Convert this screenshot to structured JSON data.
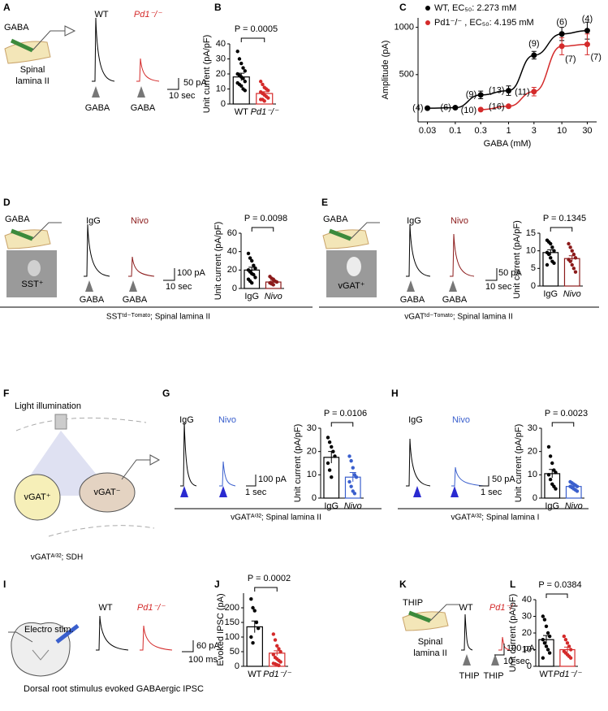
{
  "figure": {
    "labels": [
      "A",
      "B",
      "C",
      "D",
      "E",
      "F",
      "G",
      "H",
      "I",
      "J",
      "K",
      "L"
    ],
    "A": {
      "pipette": "GABA",
      "region": [
        "Spinal",
        "lamina II"
      ],
      "traces": [
        "WT",
        "Pd1⁻/⁻"
      ],
      "scale": [
        "50 pA",
        "10 sec"
      ],
      "stim": [
        "GABA",
        "GABA"
      ]
    },
    "D": {
      "pipette": "GABA",
      "cell": "SST⁺",
      "traces": [
        "IgG",
        "Nivo"
      ],
      "scale": [
        "100 pA",
        "10 sec"
      ],
      "stim": [
        "GABA",
        "GABA"
      ],
      "footer": "SSTᵗᵈ⁻ᵀᵒᵐᵃᵗᵒ; Spinal lamina II"
    },
    "E": {
      "pipette": "GABA",
      "cell": "vGAT⁺",
      "traces": [
        "IgG",
        "Nivo"
      ],
      "scale": [
        "50 pA",
        "10 sec"
      ],
      "stim": [
        "GABA",
        "GABA"
      ],
      "footer": "vGATᵗᵈ⁻ᵀᵒᵐᵃᵗᵒ; Spinal lamina II"
    },
    "F": {
      "lamp": "Light illumination",
      "cells": [
        "vGAT⁺",
        "vGAT⁻"
      ],
      "footer": "vGATᴬⁱ³²; SDH"
    },
    "G": {
      "traces": [
        "IgG",
        "Nivo"
      ],
      "scale": [
        "100 pA",
        "1 sec"
      ],
      "footer": "vGATᴬⁱ³²; Spinal lamina II"
    },
    "H": {
      "traces": [
        "IgG",
        "Nivo"
      ],
      "scale": [
        "50 pA",
        "1 sec"
      ],
      "footer": "vGATᴬⁱ³²; Spinal lamina I"
    },
    "I": {
      "stim_label": "Electro stim.",
      "traces": [
        "WT",
        "Pd1⁻/⁻"
      ],
      "scale": [
        "60 pA",
        "100 ms"
      ],
      "footer": "Dorsal root stimulus evoked GABAergic IPSC"
    },
    "K": {
      "pipette": "THIP",
      "region": [
        "Spinal",
        "lamina II"
      ],
      "traces": [
        "WT",
        "Pd1⁻/⁻"
      ],
      "scale": [
        "100 pA",
        "10 sec"
      ],
      "stim": [
        "THIP",
        "THIP"
      ]
    }
  },
  "chart_data": [
    {
      "type": "bar",
      "title": "P = 0.0005",
      "ylabel": "Unit current (pA/pF)",
      "categories": [
        "WT",
        "Pd1⁻/⁻"
      ],
      "values": [
        18,
        7
      ],
      "errors": [
        2.5,
        1.2
      ],
      "points": [
        [
          35,
          30,
          27,
          24,
          22,
          20,
          19,
          18,
          17,
          15,
          14,
          13,
          12,
          10,
          9
        ],
        [
          15,
          13,
          11,
          10,
          9,
          8,
          7,
          6,
          5,
          4,
          3,
          3,
          2
        ]
      ],
      "colors": [
        "#000000",
        "#d42a2a"
      ],
      "ylim": [
        0,
        40
      ],
      "yticks": [
        0,
        10,
        20,
        30,
        40
      ]
    },
    {
      "type": "line",
      "ylabel": "Amplitude (pA)",
      "xlabel": "GABA (mM)",
      "log_x": true,
      "x": [
        0.03,
        0.1,
        0.3,
        1,
        3,
        10,
        30
      ],
      "series": [
        {
          "name": "WT, EC₅₀: 2.273 mM",
          "color": "#000000",
          "values": [
            145,
            150,
            285,
            330,
            705,
            930,
            965
          ],
          "errors": [
            10,
            10,
            40,
            50,
            40,
            70,
            90
          ],
          "n_labels": [
            "(4)",
            "(6)",
            "(9)",
            "(13)",
            "(9)",
            "(6)",
            "(4)"
          ]
        },
        {
          "name": "Pd1⁻/⁻ , EC₅₀: 4.195 mM",
          "color": "#d42a2a",
          "values": [
            null,
            null,
            130,
            165,
            320,
            800,
            820
          ],
          "errors": [
            null,
            null,
            10,
            15,
            45,
            90,
            110
          ],
          "n_labels": [
            null,
            null,
            "(10)",
            "(16)",
            "(11)",
            "(7)",
            "(7)"
          ]
        }
      ],
      "xlim": [
        0.02,
        45
      ],
      "xticks": [
        0.03,
        0.1,
        0.3,
        1,
        3,
        10,
        30
      ],
      "ylim": [
        0,
        1100
      ],
      "yticks": [
        500,
        1000
      ]
    },
    {
      "type": "bar",
      "title": "P = 0.0098",
      "ylabel": "Unit current (pA/pF)",
      "categories": [
        "IgG",
        "Nivo"
      ],
      "values": [
        20,
        7
      ],
      "errors": [
        3,
        1
      ],
      "points": [
        [
          38,
          33,
          30,
          25,
          22,
          20,
          18,
          16,
          15,
          12,
          10,
          8,
          6
        ],
        [
          13,
          11,
          10,
          8,
          7,
          6,
          5,
          4
        ]
      ],
      "colors": [
        "#000000",
        "#8b1a1a"
      ],
      "ylim": [
        0,
        60
      ],
      "yticks": [
        0,
        20,
        40,
        60
      ]
    },
    {
      "type": "bar",
      "title": "P = 0.1345",
      "ylabel": "Unit current (pA/pF)",
      "categories": [
        "IgG",
        "Nivo"
      ],
      "values": [
        9.5,
        7.8
      ],
      "errors": [
        0.8,
        0.8
      ],
      "points": [
        [
          13,
          12.5,
          12,
          11,
          10,
          9.5,
          9,
          8,
          7,
          6.5,
          6
        ],
        [
          12,
          11,
          10,
          9,
          8,
          7.5,
          7,
          6,
          5,
          4
        ]
      ],
      "colors": [
        "#000000",
        "#8b1a1a"
      ],
      "ylim": [
        0,
        15
      ],
      "yticks": [
        0,
        5,
        10,
        15
      ]
    },
    {
      "type": "bar",
      "title": "P = 0.0106",
      "ylabel": "Unit current (pA/pF)",
      "categories": [
        "IgG",
        "Nivo"
      ],
      "values": [
        17.5,
        9
      ],
      "errors": [
        2.5,
        2
      ],
      "points": [
        [
          26,
          24,
          22,
          20,
          18,
          15,
          12,
          9
        ],
        [
          18,
          16,
          13,
          10,
          9,
          7,
          5,
          3,
          2
        ]
      ],
      "colors": [
        "#000000",
        "#3a5fcd"
      ],
      "ylim": [
        0,
        30
      ],
      "yticks": [
        0,
        10,
        20,
        30
      ]
    },
    {
      "type": "bar",
      "title": "P = 0.0023",
      "ylabel": "Unit current (pA/pF)",
      "categories": [
        "IgG",
        "Nivo"
      ],
      "values": [
        10.5,
        5
      ],
      "errors": [
        1.8,
        0.5
      ],
      "points": [
        [
          22,
          18,
          15,
          12,
          11,
          10,
          8,
          6,
          5,
          4
        ],
        [
          7,
          6.5,
          6,
          5.5,
          5,
          5,
          4.5,
          4,
          3.5,
          3
        ]
      ],
      "colors": [
        "#000000",
        "#3a5fcd"
      ],
      "ylim": [
        0,
        30
      ],
      "yticks": [
        0,
        10,
        20,
        30
      ]
    },
    {
      "type": "bar",
      "title": "P = 0.0002",
      "ylabel": "Evoked IPSC (pA)",
      "categories": [
        "WT",
        "Pd1⁻/⁻"
      ],
      "values": [
        135,
        45
      ],
      "errors": [
        20,
        8
      ],
      "points": [
        [
          230,
          200,
          190,
          150,
          130,
          100,
          80
        ],
        [
          110,
          90,
          70,
          60,
          50,
          40,
          30,
          25,
          20,
          15,
          10,
          8,
          5,
          3
        ]
      ],
      "colors": [
        "#000000",
        "#d42a2a"
      ],
      "ylim": [
        0,
        250
      ],
      "yticks": [
        0,
        50,
        100,
        150,
        200
      ]
    },
    {
      "type": "bar",
      "title": "P = 0.0384",
      "ylabel": "Unit current (pA/pF)",
      "categories": [
        "WT",
        "Pd1⁻/⁻"
      ],
      "values": [
        16,
        10
      ],
      "errors": [
        2.5,
        1.5
      ],
      "points": [
        [
          30,
          28,
          24,
          20,
          18,
          16,
          14,
          12,
          10,
          8,
          5
        ],
        [
          18,
          16,
          14,
          12,
          10,
          9,
          8,
          7,
          6,
          5
        ]
      ],
      "colors": [
        "#000000",
        "#d42a2a"
      ],
      "ylim": [
        0,
        40
      ],
      "yticks": [
        0,
        10,
        20,
        30,
        40
      ]
    }
  ]
}
